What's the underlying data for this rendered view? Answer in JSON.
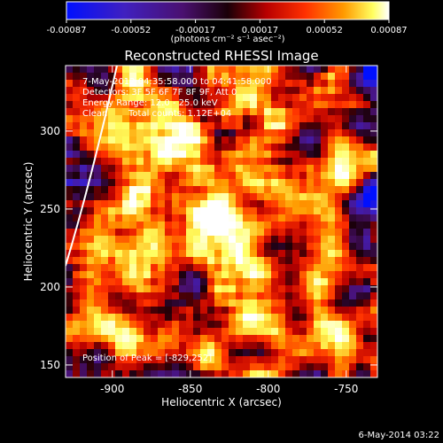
{
  "chart_data": {
    "type": "heatmap",
    "title": "Reconstructed RHESSI Image",
    "colorbar": {
      "ticks": [
        "-0.00087",
        "-0.00052",
        "-0.00017",
        "0.00017",
        "0.00052",
        "0.00087"
      ],
      "range": [
        -0.00087,
        0.00087
      ],
      "unit_label": "(photons cm⁻² s⁻¹ asec⁻²)",
      "colors": [
        "#0010ff",
        "#4020c0",
        "#4a1070",
        "#1a0008",
        "#b80000",
        "#ff3000",
        "#ff9a00",
        "#ffff60",
        "#ffffff"
      ]
    },
    "xlabel": "Heliocentric X (arcsec)",
    "ylabel": "Heliocentric Y (arcsec)",
    "xlim": [
      -930,
      -730
    ],
    "ylim": [
      142,
      342
    ],
    "xticks": [
      "-900",
      "-850",
      "-800",
      "-750"
    ],
    "yticks": [
      "150",
      "200",
      "250",
      "300"
    ],
    "annotations": [
      "7-May-2012 04:35:58.000 to 04:41:58.000",
      "Detectors: 3F 5F 6F 7F 8F 9F, Att 0",
      "Energy Range: 12.0 - 25.0 keV",
      "Clean",
      "Total counts: 1.12E+04"
    ],
    "peak_label": "Position of Peak = [-829,252]",
    "peak": {
      "x": -829,
      "y": 252
    },
    "limb_color": "#ffffff"
  },
  "footer": {
    "date": "6-May-2014 03:22"
  }
}
